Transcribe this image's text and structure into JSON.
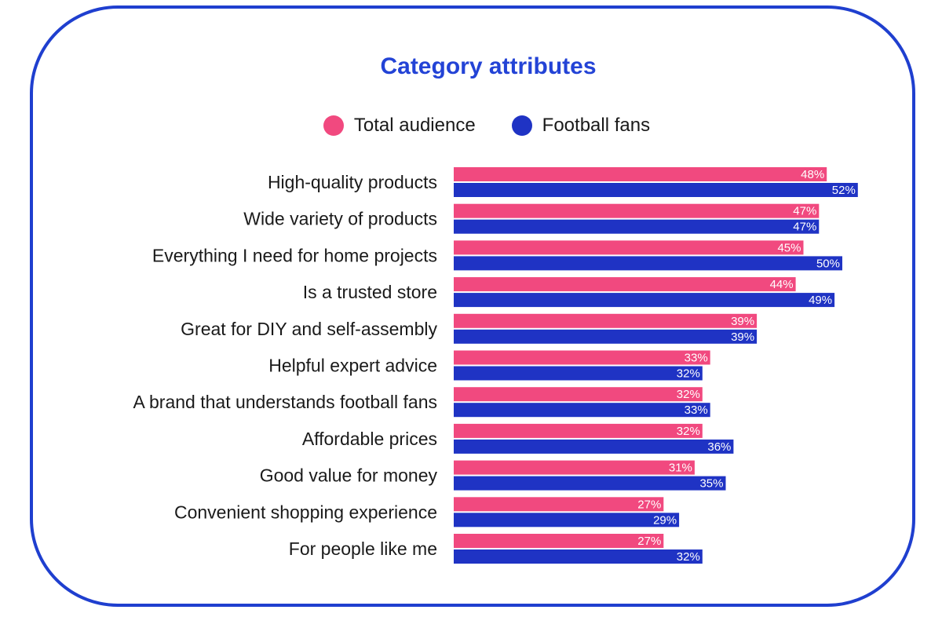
{
  "chart_data": {
    "type": "bar",
    "orientation": "horizontal",
    "title": "Category attributes",
    "categories": [
      "High-quality products",
      "Wide variety of products",
      "Everything I need for home projects",
      "Is a trusted store",
      "Great for DIY and self-assembly",
      "Helpful expert advice",
      "A brand that understands football fans",
      "Affordable prices",
      "Good value for money",
      "Convenient shopping experience",
      "For people like me"
    ],
    "series": [
      {
        "name": "Total audience",
        "color": "#f1497f",
        "values": [
          48,
          47,
          45,
          44,
          39,
          33,
          32,
          32,
          31,
          27,
          27
        ]
      },
      {
        "name": "Football fans",
        "color": "#1f33c4",
        "values": [
          52,
          47,
          50,
          49,
          39,
          32,
          33,
          36,
          35,
          29,
          32
        ]
      }
    ],
    "value_suffix": "%",
    "legend_position": "top-center",
    "grid": false
  }
}
